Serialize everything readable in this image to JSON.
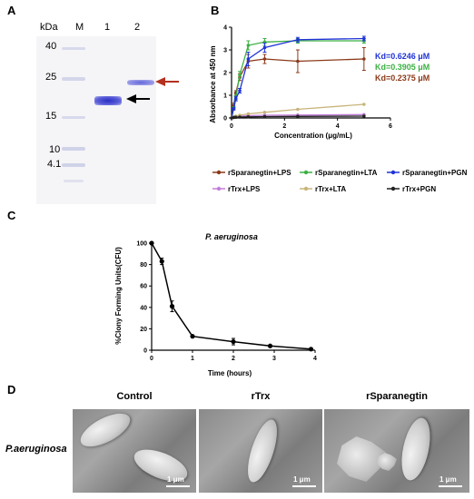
{
  "panel_labels": {
    "a": "A",
    "b": "B",
    "c": "C",
    "d": "D"
  },
  "gel": {
    "unit_label": "kDa",
    "lanes": [
      "M",
      "1",
      "2"
    ],
    "markers": [
      "40",
      "25",
      "15",
      "10",
      "4.1"
    ]
  },
  "colors": {
    "lps_series": "#8b3a1a",
    "lta_series": "#3cb043",
    "pgn_series": "#1f33d6",
    "rtrx_lps": "#c27ddb",
    "rtrx_lta": "#c8b47a",
    "rtrx_pgn": "#222222",
    "red_arrow": "#b5301e",
    "black_arrow": "#000000"
  },
  "chart_data": [
    {
      "type": "line",
      "panel": "B",
      "xlabel": "Concentration (μg/mL)",
      "ylabel": "Absorbance at 450 nm",
      "xlim": [
        0,
        6
      ],
      "ylim": [
        0,
        4
      ],
      "xticks": [
        "0",
        "2",
        "4",
        "6"
      ],
      "yticks": [
        "0",
        "1",
        "2",
        "3",
        "4"
      ],
      "series": [
        {
          "name": "rSparanegtin+LPS",
          "color": "#8b3a1a",
          "x": [
            0,
            0.08,
            0.16,
            0.31,
            0.63,
            1.25,
            2.5,
            5
          ],
          "y": [
            0,
            0.55,
            1.1,
            1.8,
            2.5,
            2.6,
            2.5,
            2.6
          ],
          "err": [
            0,
            0.1,
            0.1,
            0.15,
            0.3,
            0.2,
            0.5,
            0.5
          ]
        },
        {
          "name": "rSparanegtin+LTA",
          "color": "#3cb043",
          "x": [
            0,
            0.08,
            0.16,
            0.31,
            0.63,
            1.25,
            2.5,
            5
          ],
          "y": [
            0,
            0.45,
            0.9,
            1.9,
            3.2,
            3.35,
            3.4,
            3.4
          ],
          "err": [
            0,
            0.05,
            0.1,
            0.15,
            0.2,
            0.15,
            0.1,
            0.1
          ]
        },
        {
          "name": "rSparanegtin+PGN",
          "color": "#1f33d6",
          "x": [
            0,
            0.08,
            0.16,
            0.31,
            0.63,
            1.25,
            2.5,
            5
          ],
          "y": [
            0,
            0.4,
            0.85,
            1.2,
            2.6,
            3.1,
            3.45,
            3.5
          ],
          "err": [
            0,
            0.05,
            0.1,
            0.1,
            0.3,
            0.2,
            0.1,
            0.1
          ]
        },
        {
          "name": "rTrx+LPS",
          "color": "#c27ddb",
          "x": [
            0,
            0.08,
            0.16,
            0.31,
            0.63,
            1.25,
            2.5,
            5
          ],
          "y": [
            0,
            0.02,
            0.05,
            0.08,
            0.1,
            0.12,
            0.13,
            0.15
          ],
          "err": [
            0,
            0,
            0,
            0,
            0,
            0,
            0,
            0
          ]
        },
        {
          "name": "rTrx+LTA",
          "color": "#c8b47a",
          "x": [
            0,
            0.08,
            0.16,
            0.31,
            0.63,
            1.25,
            2.5,
            5
          ],
          "y": [
            0,
            0.05,
            0.08,
            0.12,
            0.18,
            0.25,
            0.38,
            0.6
          ],
          "err": [
            0,
            0,
            0,
            0,
            0,
            0,
            0,
            0
          ]
        },
        {
          "name": "rTrx+PGN",
          "color": "#222222",
          "x": [
            0,
            0.08,
            0.16,
            0.31,
            0.63,
            1.25,
            2.5,
            5
          ],
          "y": [
            0,
            0.02,
            0.03,
            0.04,
            0.05,
            0.06,
            0.07,
            0.08
          ],
          "err": [
            0,
            0,
            0,
            0,
            0,
            0,
            0,
            0
          ]
        }
      ],
      "annotations": [
        {
          "text": "Kd=0.6246 μM",
          "color": "#1f33d6"
        },
        {
          "text": "Kd=0.3905 μM",
          "color": "#3cb043"
        },
        {
          "text": "Kd=0.2375 μM",
          "color": "#8b3a1a"
        }
      ]
    },
    {
      "type": "line",
      "panel": "C",
      "title": "P. aeruginosa",
      "xlabel": "Time (hours)",
      "ylabel": "%Clony Forming Units(CFU)",
      "xlim": [
        0,
        4
      ],
      "ylim": [
        0,
        100
      ],
      "xticks": [
        "0",
        "1",
        "2",
        "3",
        "4"
      ],
      "yticks": [
        "0",
        "20",
        "40",
        "60",
        "80",
        "100"
      ],
      "series": [
        {
          "color": "#000000",
          "x": [
            0,
            0.25,
            0.5,
            1,
            2,
            2.9,
            3.9
          ],
          "y": [
            100,
            83,
            41,
            13,
            8,
            4,
            1
          ],
          "err": [
            0,
            3,
            5,
            1,
            3,
            1,
            0.5
          ]
        }
      ]
    }
  ],
  "sem": {
    "row_label": "P.aeruginosa",
    "columns": [
      {
        "title": "Control",
        "scale": "1 μm"
      },
      {
        "title": "rTrx",
        "scale": "1 μm"
      },
      {
        "title": "rSparanegtin",
        "scale": "1 μm"
      }
    ]
  }
}
